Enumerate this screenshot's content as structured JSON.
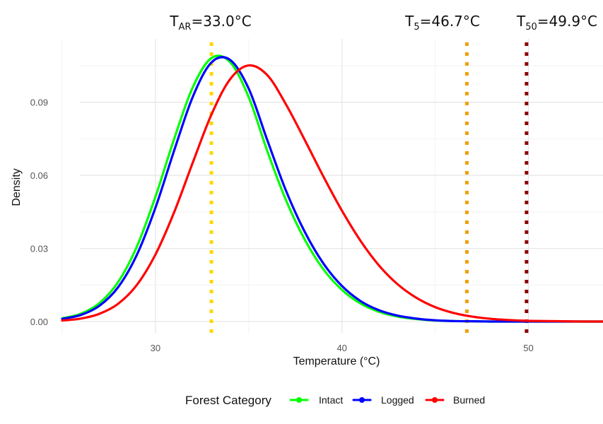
{
  "chart_data": {
    "type": "line",
    "title": "",
    "xlabel": "Temperature (°C)",
    "ylabel": "Density",
    "xlim": [
      25,
      54
    ],
    "ylim": [
      0,
      0.116
    ],
    "x_ticks": [
      30,
      40,
      50
    ],
    "y_ticks": [
      0.0,
      0.03,
      0.06,
      0.09
    ],
    "x_tick_labels": [
      "30",
      "40",
      "50"
    ],
    "y_tick_labels": [
      "0.00",
      "0.03",
      "0.06",
      "0.09"
    ],
    "grid": true,
    "legend": {
      "title": "Forest Category",
      "position": "bottom"
    },
    "x": [
      25,
      26,
      27,
      28,
      29,
      30,
      31,
      32,
      33,
      34,
      35,
      36,
      37,
      38,
      39,
      40,
      41,
      42,
      43,
      44,
      45,
      46,
      47,
      48,
      49,
      50,
      51,
      52,
      53,
      54
    ],
    "series": [
      {
        "name": "Intact",
        "color": "#00ff00",
        "values": [
          0.0013,
          0.0032,
          0.0076,
          0.0162,
          0.0307,
          0.0512,
          0.0749,
          0.0961,
          0.1081,
          0.1065,
          0.0921,
          0.0699,
          0.0498,
          0.0337,
          0.0215,
          0.013,
          0.0074,
          0.004,
          0.002,
          0.001,
          0.0004,
          0.0002,
          0.0001,
          0.0,
          0.0,
          0.0,
          0.0,
          0.0,
          0.0,
          0.0
        ]
      },
      {
        "name": "Logged",
        "color": "#0000ff",
        "values": [
          0.0011,
          0.0027,
          0.0065,
          0.0141,
          0.0273,
          0.0467,
          0.0701,
          0.0922,
          0.1063,
          0.1074,
          0.0956,
          0.0744,
          0.0537,
          0.0369,
          0.0239,
          0.0146,
          0.0084,
          0.0046,
          0.0024,
          0.0012,
          0.0005,
          0.0002,
          0.0001,
          0.0,
          0.0,
          0.0,
          0.0,
          0.0,
          0.0,
          0.0
        ]
      },
      {
        "name": "Burned",
        "color": "#ff0000",
        "values": [
          0.0004,
          0.0012,
          0.0032,
          0.0073,
          0.015,
          0.0275,
          0.0448,
          0.0652,
          0.0849,
          0.0994,
          0.1051,
          0.1011,
          0.0891,
          0.0746,
          0.0596,
          0.0455,
          0.0331,
          0.0229,
          0.0152,
          0.0097,
          0.0059,
          0.0035,
          0.002,
          0.0011,
          0.0006,
          0.0003,
          0.0002,
          0.0001,
          0.0,
          0.0
        ]
      }
    ],
    "annotations": [
      {
        "id": "tar",
        "x": 33.0,
        "label_main": "T",
        "label_sub": "AR",
        "label_rest": "=33.0°C",
        "color": "#ffd700"
      },
      {
        "id": "t5",
        "x": 46.7,
        "label_main": "T",
        "label_sub": "5",
        "label_rest": "=46.7°C",
        "color": "#f29f05"
      },
      {
        "id": "t50",
        "x": 49.9,
        "label_main": "T",
        "label_sub": "50",
        "label_rest": "=49.9°C",
        "color": "#8b0000"
      }
    ]
  }
}
